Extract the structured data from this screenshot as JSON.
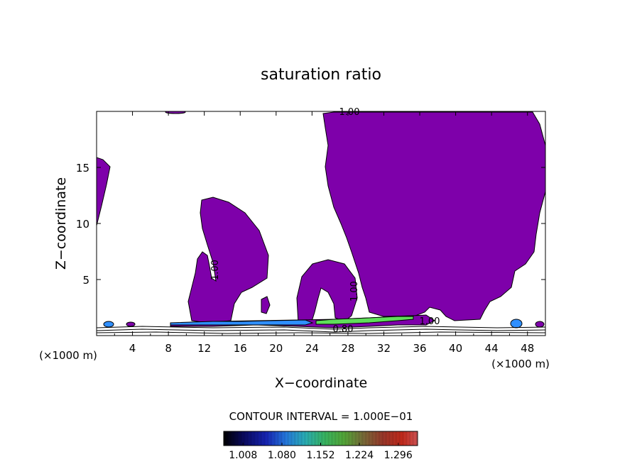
{
  "chart_data": {
    "type": "heatmap",
    "title": "saturation ratio",
    "xlabel": "X−coordinate",
    "ylabel": "Z−coordinate",
    "x_unit_left": "(×1000 m)",
    "x_unit_right": "(×1000 m)",
    "xlim": [
      0,
      50
    ],
    "ylim": [
      0,
      20
    ],
    "xticks": [
      4,
      8,
      12,
      16,
      20,
      24,
      28,
      32,
      36,
      40,
      44,
      48
    ],
    "yticks": [
      5,
      10,
      15
    ],
    "contour_interval_text": "CONTOUR INTERVAL = 1.000E−01",
    "contour_labels": [
      "1.00",
      "1.00",
      "1.00",
      "1.00",
      "0.80"
    ],
    "colorbar": {
      "ticks": [
        "1.008",
        "1.080",
        "1.152",
        "1.224",
        "1.296"
      ],
      "min": 0.972,
      "max": 1.332
    },
    "colors": {
      "supersaturated_fill": "#7e00aa",
      "band_low": "#1f2aa0",
      "band_mid": "#2f8fff",
      "band_high": "#5fdf5a"
    },
    "regions": [
      {
        "name": "upper-right-plume",
        "x_range": [
          25.5,
          50
        ],
        "z_range": [
          1.8,
          20
        ]
      },
      {
        "name": "left-edge-sliver",
        "x_range": [
          0,
          1.5
        ],
        "z_range": [
          11,
          16
        ]
      },
      {
        "name": "tower-x12",
        "x_range": [
          10,
          19
        ],
        "z_range": [
          1.2,
          12.2
        ]
      },
      {
        "name": "arch-x23-29",
        "x_range": [
          22.5,
          29.5
        ],
        "z_range": [
          1.2,
          6.5
        ]
      },
      {
        "name": "low-band",
        "x_range": [
          9,
          37
        ],
        "z_range": [
          0.9,
          1.8
        ]
      }
    ]
  }
}
